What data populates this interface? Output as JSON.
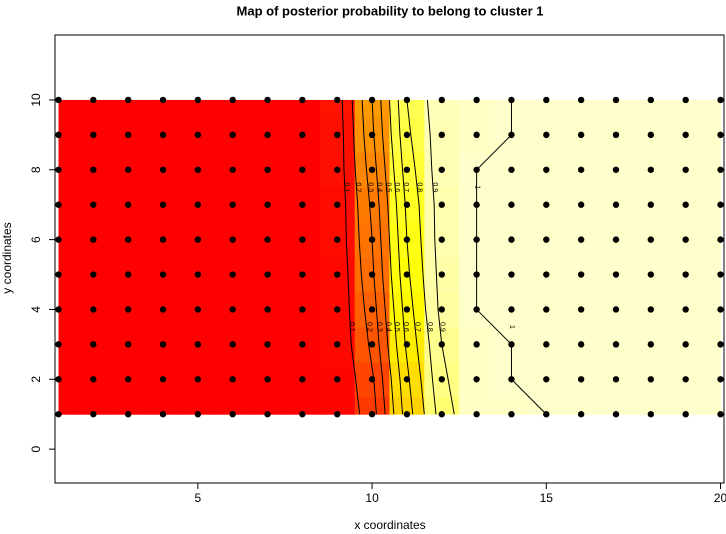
{
  "chart_data": {
    "type": "contour",
    "title": "Map of posterior probability to belong to cluster  1",
    "x_label": "x coordinates",
    "y_label": "y coordinates",
    "xlim": [
      0.9,
      20.1
    ],
    "ylim": [
      -0.97,
      11.86
    ],
    "xticks": [
      5,
      10,
      15,
      20
    ],
    "yticks": [
      0,
      2,
      4,
      6,
      8,
      10
    ],
    "x": [
      1,
      2,
      3,
      4,
      5,
      6,
      7,
      8,
      9,
      10,
      11,
      12,
      13,
      14,
      15,
      16,
      17,
      18,
      19,
      20
    ],
    "y": [
      1,
      2,
      3,
      4,
      5,
      6,
      7,
      8,
      9,
      10
    ],
    "z": [
      [
        0,
        0,
        0,
        0,
        0,
        0,
        0,
        0,
        0.01,
        0.15,
        0.55,
        0.85,
        0.99,
        0.99,
        1,
        1,
        1,
        1,
        1,
        1
      ],
      [
        0,
        0,
        0,
        0,
        0,
        0,
        0,
        0,
        0.01,
        0.18,
        0.58,
        0.88,
        0.99,
        1,
        1,
        1,
        1,
        1,
        1,
        1
      ],
      [
        0,
        0,
        0,
        0,
        0,
        0,
        0,
        0,
        0.02,
        0.22,
        0.62,
        0.9,
        0.99,
        1,
        1,
        1,
        1,
        1,
        1,
        1
      ],
      [
        0,
        0,
        0,
        0,
        0,
        0,
        0,
        0,
        0.02,
        0.25,
        0.65,
        0.93,
        1,
        1,
        1,
        1,
        1,
        1,
        1,
        1
      ],
      [
        0,
        0,
        0,
        0,
        0,
        0,
        0,
        0,
        0.02,
        0.28,
        0.68,
        0.94,
        1,
        1,
        1,
        1,
        1,
        1,
        1,
        1
      ],
      [
        0,
        0,
        0,
        0,
        0,
        0,
        0,
        0,
        0.03,
        0.3,
        0.7,
        0.95,
        1,
        1,
        1,
        1,
        1,
        1,
        1,
        1
      ],
      [
        0,
        0,
        0,
        0,
        0,
        0,
        0,
        0,
        0.03,
        0.32,
        0.72,
        0.95,
        1,
        1,
        1,
        1,
        1,
        1,
        1,
        1
      ],
      [
        0,
        0,
        0,
        0,
        0,
        0,
        0,
        0,
        0.04,
        0.35,
        0.75,
        0.96,
        1,
        1,
        1,
        1,
        1,
        1,
        1,
        1
      ],
      [
        0,
        0,
        0,
        0,
        0,
        0,
        0,
        0,
        0.04,
        0.38,
        0.78,
        0.96,
        0.99,
        1,
        1,
        1,
        1,
        1,
        1,
        1
      ],
      [
        0,
        0,
        0,
        0,
        0,
        0,
        0,
        0,
        0.05,
        0.4,
        0.8,
        0.97,
        0.99,
        1,
        1,
        1,
        1,
        1,
        1,
        1
      ]
    ],
    "contour_levels": [
      0.1,
      0.2,
      0.3,
      0.4,
      0.5,
      0.6,
      0.7,
      0.8,
      0.9,
      1
    ],
    "colormap": [
      "#ff0000",
      "#ff8000",
      "#ffff00",
      "#ffffcc"
    ],
    "point_color": "#000000"
  }
}
